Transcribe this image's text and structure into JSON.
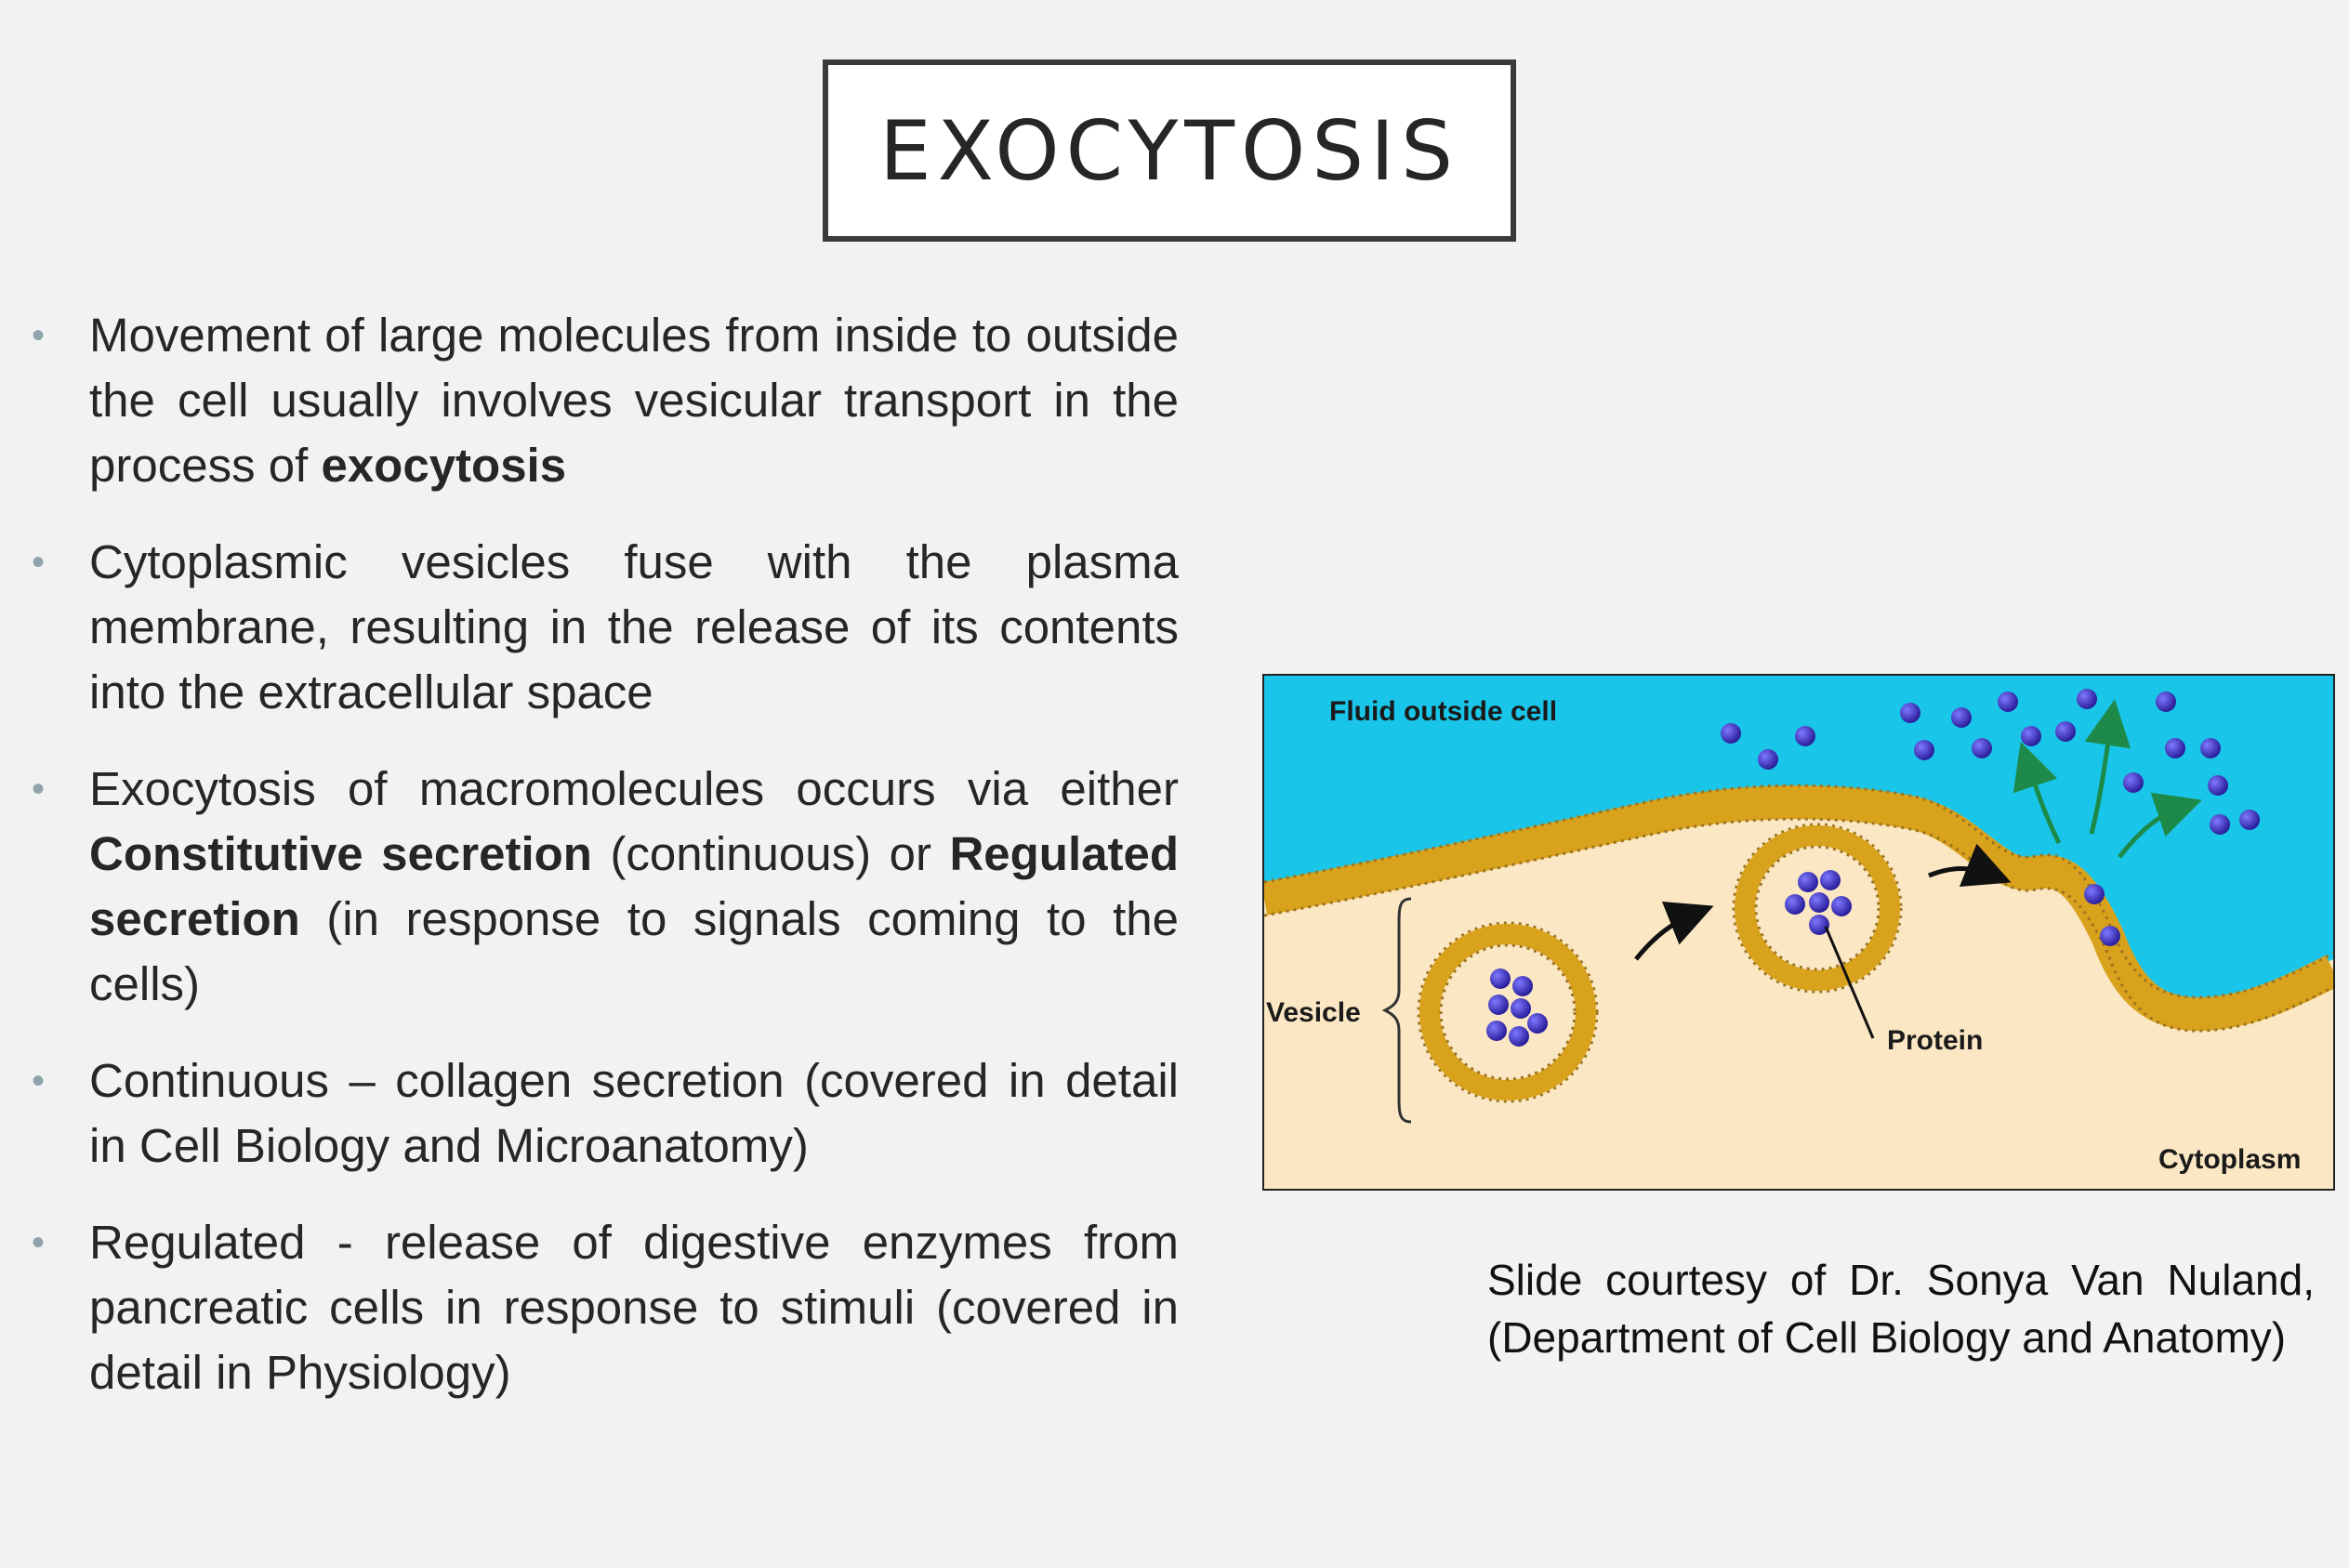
{
  "slide": {
    "title": "EXOCYTOSIS",
    "bullets": [
      {
        "parts": [
          "Movement of large molecules from inside to outside the cell usually involves vesicular transport in the process of ",
          "exocytosis"
        ]
      },
      {
        "parts": [
          "Cytoplasmic vesicles fuse with the plasma membrane, resulting in the release of its contents into the extracellular space"
        ]
      },
      {
        "parts": [
          "Exocytosis of macromolecules occurs via either ",
          "Constitutive secretion",
          " (continuous) or ",
          "Regulated secretion",
          " (in response to signals coming to the cells)"
        ]
      },
      {
        "parts": [
          "Continuous – collagen secretion (covered in detail in Cell Biology and Microanatomy)"
        ]
      },
      {
        "parts": [
          "Regulated - release of digestive enzymes from pancreatic cells in response to stimuli (covered in detail in Physiology)"
        ]
      }
    ],
    "figure": {
      "labels": {
        "fluid": "Fluid outside cell",
        "vesicle": "Vesicle",
        "protein": "Protein",
        "cytoplasm": "Cytoplasm"
      },
      "colors": {
        "extracellular": "#19c6ea",
        "cytoplasm": "#fbe7c3",
        "membrane": "#d9a21c",
        "protein": "#3a2fb8"
      }
    },
    "caption": "Slide courtesy of Dr. Sonya Van Nuland, (Department of Cell Biology and Anatomy)"
  }
}
